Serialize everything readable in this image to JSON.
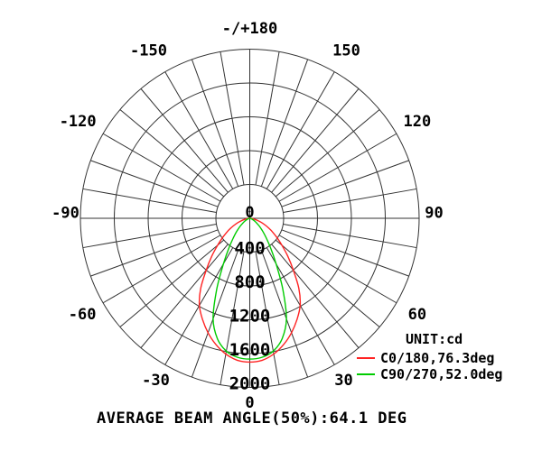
{
  "window": {
    "background": "#ffffff",
    "text_color": "#000000",
    "grid_color": "#333333"
  },
  "chart_data": {
    "type": "polar_line",
    "title": "",
    "unit": "cd",
    "unit_label": "UNIT:cd",
    "footer": "AVERAGE BEAM ANGLE(50%):64.1 DEG",
    "average_beam_angle_50pct_deg": 64.1,
    "grid": {
      "angle_step_deg": 10,
      "angle_label_step_deg": 30,
      "radial_step_cd": 400
    },
    "radial_axis": {
      "min": 0,
      "max": 2000,
      "tick_labels": [
        "400",
        "800",
        "1200",
        "1600",
        "2000"
      ],
      "center_tick_label": "0"
    },
    "angle_axis": {
      "labels": [
        {
          "angle": 180,
          "text": "-/+180"
        },
        {
          "angle": -150,
          "text": "-150"
        },
        {
          "angle": 150,
          "text": "150"
        },
        {
          "angle": -120,
          "text": "-120"
        },
        {
          "angle": 120,
          "text": "120"
        },
        {
          "angle": -90,
          "text": "-90"
        },
        {
          "angle": 90,
          "text": "90"
        },
        {
          "angle": -60,
          "text": "-60"
        },
        {
          "angle": 60,
          "text": "60"
        },
        {
          "angle": -30,
          "text": "-30"
        },
        {
          "angle": 30,
          "text": "30"
        },
        {
          "angle": 0,
          "text": "0"
        }
      ]
    },
    "series": [
      {
        "name": "C0/180",
        "legend": "C0/180,76.3deg",
        "beam_angle_deg": 76.3,
        "color": "#ff2222",
        "symmetric": true,
        "angles_deg": [
          0,
          5,
          10,
          15,
          20,
          25,
          30,
          35,
          40,
          45,
          50,
          55,
          60,
          65,
          70,
          75,
          80,
          85,
          90
        ],
        "intensity_cd": [
          1700,
          1685,
          1630,
          1545,
          1440,
          1320,
          1190,
          1010,
          800,
          635,
          495,
          385,
          295,
          215,
          148,
          92,
          48,
          18,
          0
        ]
      },
      {
        "name": "C90/270",
        "legend": "C90/270,52.0deg",
        "beam_angle_deg": 52.0,
        "color": "#00cc00",
        "symmetric": true,
        "angles_deg": [
          0,
          5,
          10,
          15,
          20,
          25,
          30,
          35,
          40,
          45,
          50,
          55,
          60,
          65,
          70,
          75,
          80,
          85,
          90
        ],
        "intensity_cd": [
          1665,
          1650,
          1595,
          1475,
          1265,
          920,
          620,
          430,
          300,
          215,
          150,
          100,
          65,
          40,
          24,
          13,
          6,
          2,
          0
        ]
      }
    ]
  }
}
